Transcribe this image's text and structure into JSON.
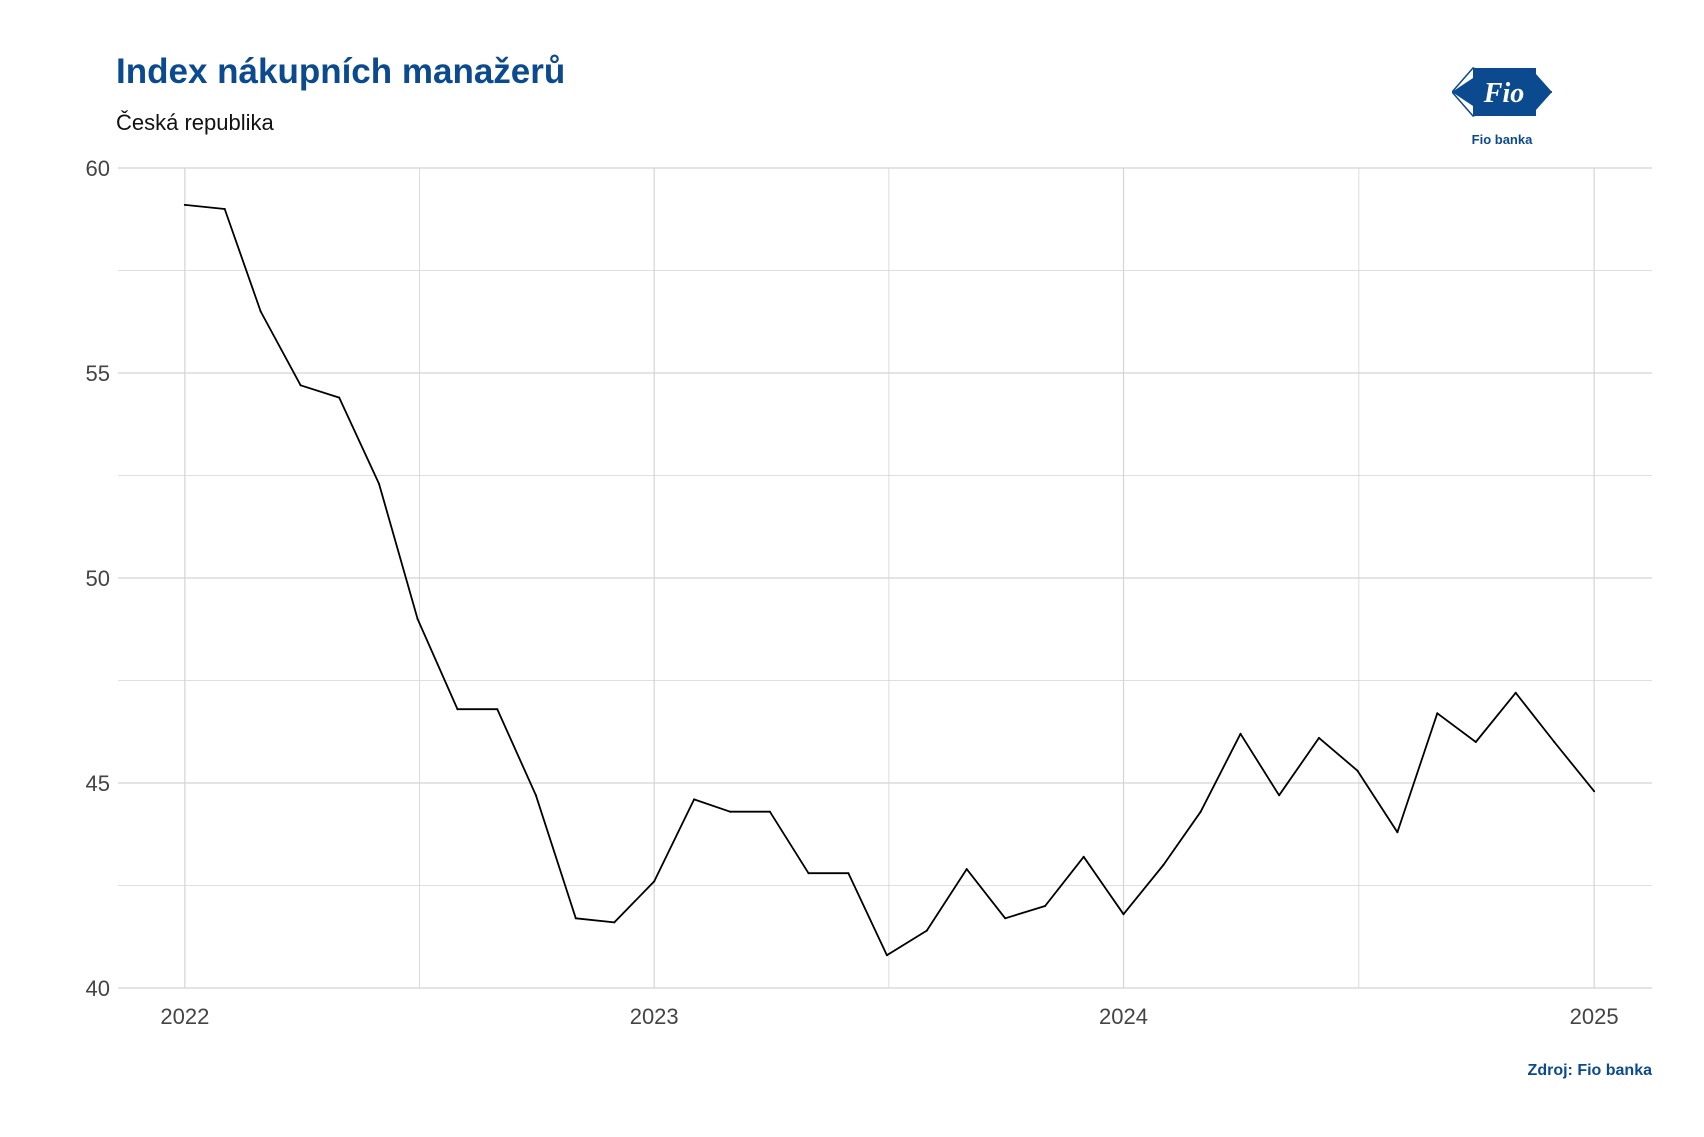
{
  "header": {
    "title": "Index nákupních manažerů",
    "subtitle": "Česká republika"
  },
  "logo": {
    "icon": "fio-banka-logo-icon",
    "mark_text": "Fio",
    "caption": "Fio banka",
    "color": "#0b4a8f"
  },
  "footer": {
    "source": "Zdroj: Fio banka"
  },
  "colors": {
    "title": "#0b4a8f",
    "line": "#000000",
    "grid": "#d4d4d4"
  },
  "chart_data": {
    "type": "line",
    "title": "Index nákupních manažerů",
    "subtitle": "Česká republika",
    "xlabel": "",
    "ylabel": "",
    "ylim": [
      40,
      60
    ],
    "xlim": [
      "2021-11-10",
      "2025-02-15"
    ],
    "yticks": [
      40,
      45,
      50,
      55,
      60
    ],
    "xticks": [
      {
        "date": "2022-01-01",
        "label": "2022"
      },
      {
        "date": "2023-01-01",
        "label": "2023"
      },
      {
        "date": "2024-01-01",
        "label": "2024"
      },
      {
        "date": "2025-01-01",
        "label": "2025"
      }
    ],
    "grid": true,
    "legend": "none",
    "series": [
      {
        "x": [
          "2022-01-01",
          "2022-02-01",
          "2022-03-01",
          "2022-04-01",
          "2022-05-01",
          "2022-06-01",
          "2022-07-01",
          "2022-08-01",
          "2022-09-01",
          "2022-10-01",
          "2022-11-01",
          "2022-12-01",
          "2023-01-01",
          "2023-02-01",
          "2023-03-01",
          "2023-04-01",
          "2023-05-01",
          "2023-06-01",
          "2023-07-01",
          "2023-08-01",
          "2023-09-01",
          "2023-10-01",
          "2023-11-01",
          "2023-12-01",
          "2024-01-01",
          "2024-02-01",
          "2024-03-01",
          "2024-04-01",
          "2024-05-01",
          "2024-06-01",
          "2024-07-01",
          "2024-08-01",
          "2024-09-01",
          "2024-10-01",
          "2024-11-01",
          "2024-12-01",
          "2025-01-01"
        ],
        "y": [
          59.1,
          59.0,
          56.5,
          54.7,
          54.4,
          52.3,
          49.0,
          46.8,
          46.8,
          44.7,
          41.7,
          41.6,
          42.6,
          44.6,
          44.3,
          44.3,
          42.8,
          42.8,
          40.8,
          41.4,
          42.9,
          41.7,
          42.0,
          43.2,
          41.8,
          43.0,
          44.3,
          46.2,
          44.7,
          46.1,
          45.3,
          43.8,
          46.7,
          46.0,
          47.2,
          46.0,
          44.8
        ]
      }
    ]
  }
}
